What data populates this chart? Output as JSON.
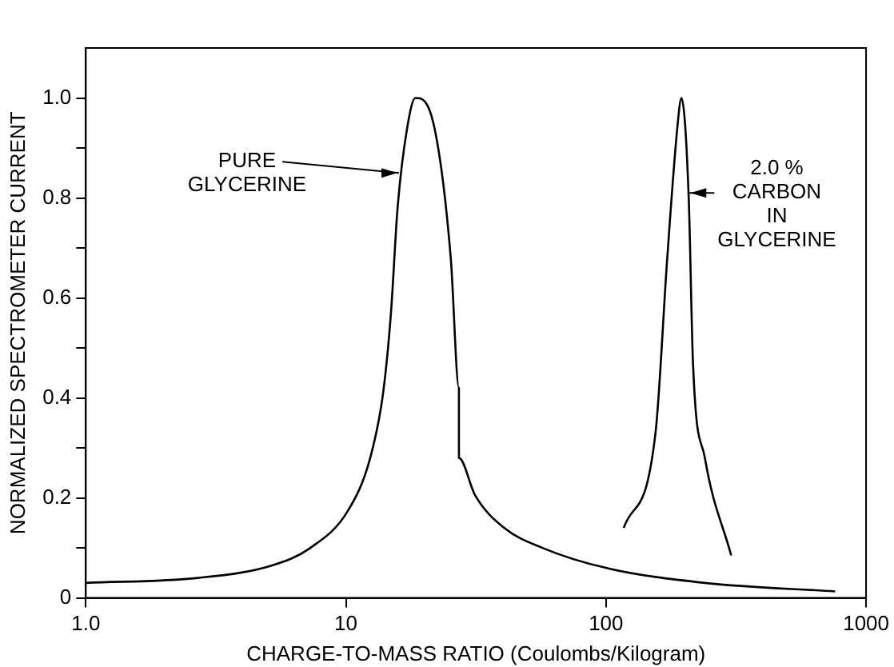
{
  "chart_data": {
    "type": "line",
    "xlabel": "CHARGE-TO-MASS RATIO (Coulombs/Kilogram)",
    "ylabel": "NORMALIZED SPECTROMETER CURRENT",
    "log": "x",
    "grid": false,
    "legend": false,
    "marker": "none",
    "line_style": "solid",
    "xlim": [
      1,
      1000
    ],
    "xticks": [
      {
        "value": 1,
        "label": "1.0"
      },
      10,
      100,
      1000
    ],
    "ylim": [
      0,
      1.1
    ],
    "yticks": [
      0,
      {
        "value": 0.1,
        "label": null
      },
      0.2,
      {
        "value": 0.3,
        "label": null
      },
      0.4,
      {
        "value": 0.5,
        "label": null
      },
      0.6,
      {
        "value": 0.7,
        "label": null
      },
      0.8,
      {
        "value": 0.9,
        "label": null
      },
      {
        "value": 1,
        "label": "1.0"
      }
    ],
    "series": [
      {
        "color": "#000000",
        "x": [
          1,
          2.7,
          5.2,
          7.3,
          10.2,
          12.4,
          13.9,
          14.9,
          15.8,
          17.2,
          18.5,
          21.9,
          25.3,
          27.2,
          27.2,
          31.4,
          40.6,
          57,
          100,
          240,
          760
        ],
        "values": [
          0.03,
          0.04,
          0.065,
          0.1,
          0.175,
          0.28,
          0.41,
          0.57,
          0.78,
          0.94,
          1,
          0.94,
          0.68,
          0.42,
          0.28,
          0.205,
          0.14,
          0.1,
          0.06,
          0.03,
          0.013
        ]
      },
      {
        "color": "#000000",
        "x": [
          117,
          155,
          172,
          188,
          195,
          208,
          216,
          240,
          303
        ],
        "values": [
          0.14,
          0.33,
          0.68,
          0.94,
          1,
          0.8,
          0.47,
          0.28,
          0.085
        ]
      }
    ],
    "annotations": [
      {
        "text": "PURE\nGLYCERINE",
        "x": 16,
        "y": 0.85
      },
      {
        "text": "2.0 %\nCARBON\nIN\nGLYCERINE",
        "x": 208,
        "y": 0.81
      }
    ]
  }
}
